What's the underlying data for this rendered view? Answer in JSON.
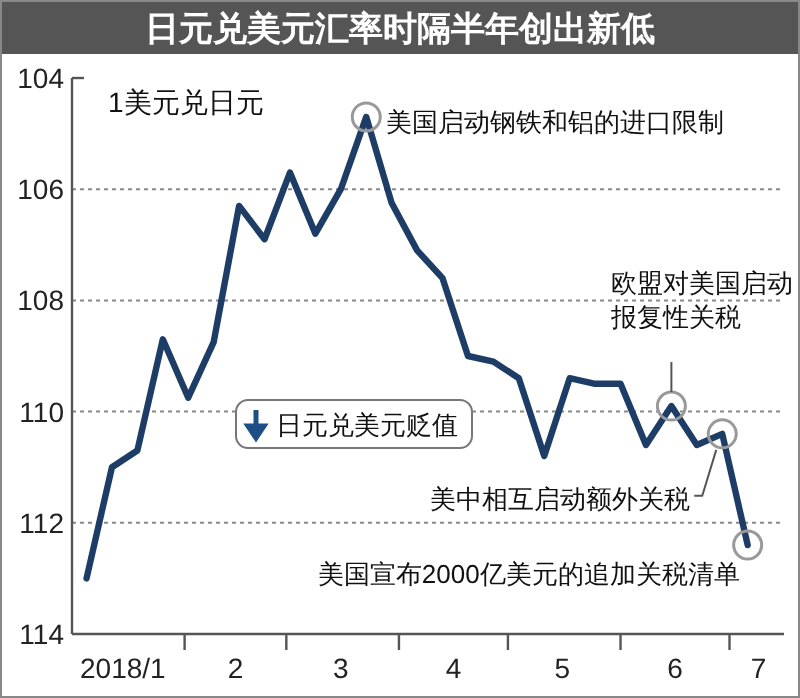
{
  "chart_data": {
    "type": "line",
    "title": "日元兑美元汇率时隔半年创出新低",
    "ylabel": "1美元兑日元",
    "x": [
      "2018-01-05",
      "2018-01-12",
      "2018-01-19",
      "2018-01-26",
      "2018-02-02",
      "2018-02-09",
      "2018-02-16",
      "2018-02-23",
      "2018-03-02",
      "2018-03-09",
      "2018-03-16",
      "2018-03-23",
      "2018-03-30",
      "2018-04-06",
      "2018-04-13",
      "2018-04-20",
      "2018-04-27",
      "2018-05-04",
      "2018-05-11",
      "2018-05-18",
      "2018-05-25",
      "2018-06-01",
      "2018-06-08",
      "2018-06-15",
      "2018-06-22",
      "2018-06-29",
      "2018-07-06"
    ],
    "series": [
      {
        "color": "#1d3d66",
        "values": [
          113.0,
          111.0,
          110.7,
          108.7,
          109.75,
          108.75,
          106.3,
          106.9,
          105.7,
          106.8,
          106.0,
          104.7,
          106.25,
          107.1,
          107.6,
          109.0,
          109.1,
          109.4,
          110.8,
          109.4,
          109.5,
          109.5,
          110.6,
          109.9,
          110.6,
          110.4,
          112.4
        ]
      }
    ],
    "xlim": [
      "2018-01-01",
      "2018-07-16"
    ],
    "xticks": [
      {
        "value": "2018-01-15",
        "label": "2018/1"
      },
      {
        "value": "2018-02-01",
        "label": null
      },
      {
        "value": "2018-02-15",
        "label": "2"
      },
      {
        "value": "2018-03-01",
        "label": null
      },
      {
        "value": "2018-03-16",
        "label": "3"
      },
      {
        "value": "2018-04-01",
        "label": null
      },
      {
        "value": "2018-04-16",
        "label": "4"
      },
      {
        "value": "2018-05-01",
        "label": null
      },
      {
        "value": "2018-05-16",
        "label": "5"
      },
      {
        "value": "2018-06-01",
        "label": null
      },
      {
        "value": "2018-06-16",
        "label": "6"
      },
      {
        "value": "2018-07-01",
        "label": null
      },
      {
        "value": "2018-07-09",
        "label": "7"
      }
    ],
    "ylim": [
      114,
      104
    ],
    "yticks": [
      104,
      106,
      108,
      110,
      112,
      114
    ],
    "grid": "y",
    "marker": "none",
    "line_style": "solid",
    "annotations": [
      {
        "text": "美国启动钢铁和铝的进口限制",
        "x": "2018-03-23",
        "y": 104.7
      },
      {
        "text": "欧盟对美国启动报复性关税",
        "x": "2018-06-15",
        "y": 109.9
      },
      {
        "text": "美中相互启动额外关税",
        "x": "2018-06-29",
        "y": 110.4
      },
      {
        "text": "美国宣布2000亿美元的追加关税清单",
        "x": "2018-07-06",
        "y": 112.4
      },
      "日元兑美元贬值"
    ]
  }
}
